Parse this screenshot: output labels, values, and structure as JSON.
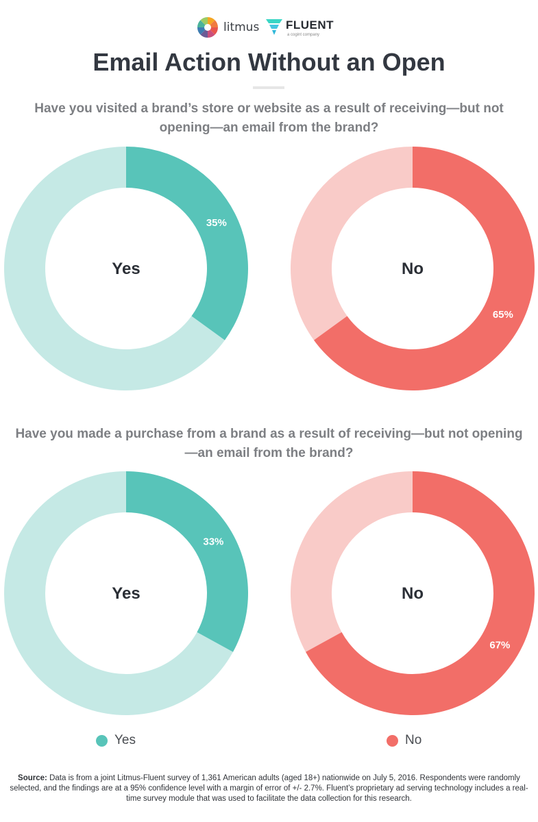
{
  "header": {
    "litmus_logo_text": "litmus",
    "fluent_logo_text": "FLUENT",
    "fluent_tagline": "a cogint company"
  },
  "title": "Email Action Without an Open",
  "colors": {
    "yes": "#58c4b9",
    "yes_light": "#c5e9e5",
    "no": "#f26e68",
    "no_light": "#f9cbc8"
  },
  "chart_data": [
    {
      "type": "pie",
      "style": "donut",
      "question": "Have you visited a brand’s store or website as a result of receiving—but not opening—an email from the brand?",
      "charts": [
        {
          "center_label": "Yes",
          "value": 35,
          "value_label": "35%",
          "highlight_color": "#58c4b9",
          "rest_color": "#c5e9e5"
        },
        {
          "center_label": "No",
          "value": 65,
          "value_label": "65%",
          "highlight_color": "#f26e68",
          "rest_color": "#f9cbc8"
        }
      ]
    },
    {
      "type": "pie",
      "style": "donut",
      "question": "Have you made a purchase from a brand as a result of receiving—but not opening—an email from the brand?",
      "charts": [
        {
          "center_label": "Yes",
          "value": 33,
          "value_label": "33%",
          "highlight_color": "#58c4b9",
          "rest_color": "#c5e9e5"
        },
        {
          "center_label": "No",
          "value": 67,
          "value_label": "67%",
          "highlight_color": "#f26e68",
          "rest_color": "#f9cbc8"
        }
      ]
    }
  ],
  "legend": {
    "yes_label": "Yes",
    "no_label": "No",
    "placement": "bottom"
  },
  "source": {
    "label": "Source:",
    "text": "Data is from a joint Litmus-Fluent survey of 1,361 American adults (aged 18+) nationwide on July 5, 2016. Respondents were randomly selected, and the findings are at a 95% confidence level with a margin of error of +/- 2.7%. Fluent’s proprietary ad serving technology includes a real-time survey module that was used to facilitate the data collection for this research."
  }
}
